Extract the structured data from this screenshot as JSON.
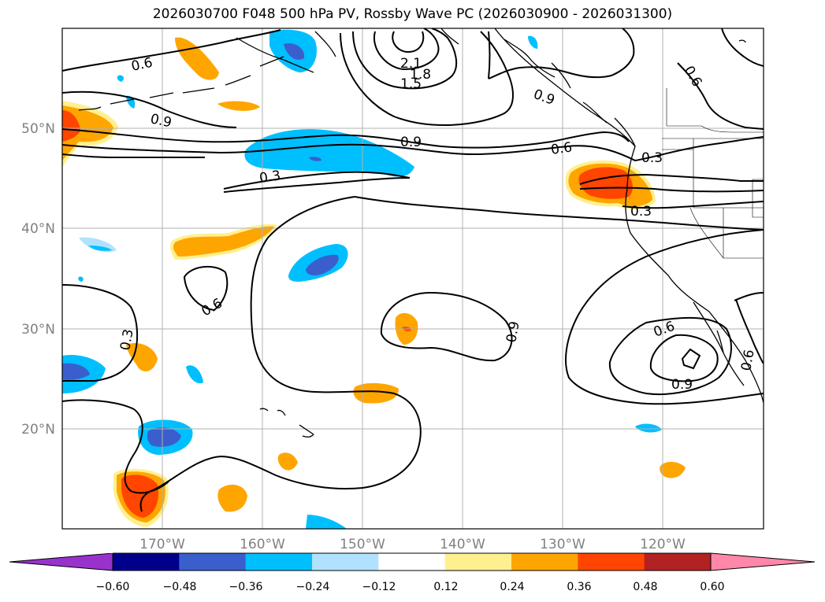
{
  "title": "2026030700 F048 500 hPa PV, Rossby Wave PC (2026030900 - 2026031300)",
  "lon_ticks": [
    "170°W",
    "160°W",
    "150°W",
    "140°W",
    "130°W",
    "120°W"
  ],
  "lat_ticks": [
    "50°N",
    "40°N",
    "30°N",
    "20°N"
  ],
  "colorbar": {
    "tick_labels": [
      "−0.60",
      "−0.48",
      "−0.36",
      "−0.24",
      "−0.12",
      "0.12",
      "0.24",
      "0.36",
      "0.48",
      "0.60"
    ],
    "colors": [
      "#9932cc",
      "#00008b",
      "#3a5fcd",
      "#00bfff",
      "#b0e2ff",
      "#ffffff",
      "#fff08f",
      "#ffa500",
      "#ff4500",
      "#b22222",
      "#ff88aa"
    ]
  },
  "contour_labels": [
    "0.6",
    "0.9",
    "2.1",
    "1.8",
    "1.5",
    "0.9",
    "0.6",
    "0.3",
    "0.3",
    "0.3",
    "0.6",
    "0.9",
    "0.3",
    "0.6",
    "0.9",
    "0.6",
    "0.9",
    "0.6"
  ],
  "colors": {
    "neg_light": "#b0e2ff",
    "neg_mid": "#00bfff",
    "neg_dark": "#3a5fcd",
    "pos_light": "#fff08f",
    "pos_mid": "#ffa500",
    "pos_dark": "#ff4500"
  }
}
